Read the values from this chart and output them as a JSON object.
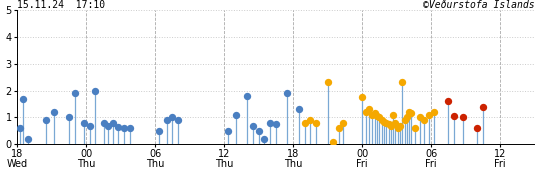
{
  "title_left": "15.11.24  17:10",
  "title_right": "©Veðurstofa Íslands",
  "xlim_hours": [
    0,
    45
  ],
  "ylim": [
    0,
    5
  ],
  "yticks": [
    0,
    1,
    2,
    3,
    4,
    5
  ],
  "xticks_hours": [
    0,
    6,
    12,
    18,
    24,
    30,
    36,
    42
  ],
  "xtick_labels": [
    "18\nWed",
    "00\nThu",
    "06\nThu",
    "12\nThu",
    "18\nThu",
    "00\nFri",
    "06\nFri",
    "12\nFri"
  ],
  "background": "#ffffff",
  "line_color": "#7aa8d4",
  "earthquakes": [
    {
      "t": 0.2,
      "m": 0.6,
      "color": "blue"
    },
    {
      "t": 0.5,
      "m": 1.7,
      "color": "blue"
    },
    {
      "t": 0.9,
      "m": 0.2,
      "color": "blue"
    },
    {
      "t": 2.5,
      "m": 0.9,
      "color": "blue"
    },
    {
      "t": 3.2,
      "m": 1.2,
      "color": "blue"
    },
    {
      "t": 4.5,
      "m": 1.0,
      "color": "blue"
    },
    {
      "t": 5.0,
      "m": 1.9,
      "color": "blue"
    },
    {
      "t": 5.8,
      "m": 0.8,
      "color": "blue"
    },
    {
      "t": 6.3,
      "m": 0.7,
      "color": "blue"
    },
    {
      "t": 6.8,
      "m": 2.0,
      "color": "blue"
    },
    {
      "t": 7.5,
      "m": 0.8,
      "color": "blue"
    },
    {
      "t": 7.9,
      "m": 0.7,
      "color": "blue"
    },
    {
      "t": 8.3,
      "m": 0.8,
      "color": "blue"
    },
    {
      "t": 8.8,
      "m": 0.65,
      "color": "blue"
    },
    {
      "t": 9.3,
      "m": 0.6,
      "color": "blue"
    },
    {
      "t": 9.8,
      "m": 0.6,
      "color": "blue"
    },
    {
      "t": 12.3,
      "m": 0.5,
      "color": "blue"
    },
    {
      "t": 13.0,
      "m": 0.9,
      "color": "blue"
    },
    {
      "t": 13.5,
      "m": 1.0,
      "color": "blue"
    },
    {
      "t": 14.0,
      "m": 0.9,
      "color": "blue"
    },
    {
      "t": 18.3,
      "m": 0.5,
      "color": "blue"
    },
    {
      "t": 19.0,
      "m": 1.1,
      "color": "blue"
    },
    {
      "t": 20.0,
      "m": 1.8,
      "color": "blue"
    },
    {
      "t": 20.5,
      "m": 0.7,
      "color": "blue"
    },
    {
      "t": 21.0,
      "m": 0.5,
      "color": "blue"
    },
    {
      "t": 21.5,
      "m": 0.2,
      "color": "blue"
    },
    {
      "t": 22.0,
      "m": 0.8,
      "color": "blue"
    },
    {
      "t": 22.5,
      "m": 0.75,
      "color": "blue"
    },
    {
      "t": 23.5,
      "m": 1.9,
      "color": "blue"
    },
    {
      "t": 24.5,
      "m": 1.3,
      "color": "blue"
    },
    {
      "t": 25.0,
      "m": 0.8,
      "color": "yellow"
    },
    {
      "t": 25.5,
      "m": 0.9,
      "color": "yellow"
    },
    {
      "t": 26.0,
      "m": 0.8,
      "color": "yellow"
    },
    {
      "t": 27.0,
      "m": 2.3,
      "color": "yellow"
    },
    {
      "t": 27.5,
      "m": 0.1,
      "color": "yellow"
    },
    {
      "t": 28.0,
      "m": 0.6,
      "color": "yellow"
    },
    {
      "t": 28.3,
      "m": 0.8,
      "color": "yellow"
    },
    {
      "t": 30.0,
      "m": 1.75,
      "color": "yellow"
    },
    {
      "t": 30.3,
      "m": 1.2,
      "color": "yellow"
    },
    {
      "t": 30.6,
      "m": 1.3,
      "color": "yellow"
    },
    {
      "t": 30.9,
      "m": 1.1,
      "color": "yellow"
    },
    {
      "t": 31.1,
      "m": 1.15,
      "color": "yellow"
    },
    {
      "t": 31.3,
      "m": 1.05,
      "color": "yellow"
    },
    {
      "t": 31.5,
      "m": 1.0,
      "color": "yellow"
    },
    {
      "t": 31.7,
      "m": 0.9,
      "color": "yellow"
    },
    {
      "t": 31.9,
      "m": 0.85,
      "color": "yellow"
    },
    {
      "t": 32.1,
      "m": 0.8,
      "color": "yellow"
    },
    {
      "t": 32.3,
      "m": 0.75,
      "color": "yellow"
    },
    {
      "t": 32.5,
      "m": 0.7,
      "color": "yellow"
    },
    {
      "t": 32.7,
      "m": 1.1,
      "color": "yellow"
    },
    {
      "t": 32.9,
      "m": 0.8,
      "color": "yellow"
    },
    {
      "t": 33.1,
      "m": 0.6,
      "color": "yellow"
    },
    {
      "t": 33.3,
      "m": 0.7,
      "color": "yellow"
    },
    {
      "t": 33.5,
      "m": 2.3,
      "color": "yellow"
    },
    {
      "t": 33.7,
      "m": 0.9,
      "color": "yellow"
    },
    {
      "t": 33.9,
      "m": 1.0,
      "color": "yellow"
    },
    {
      "t": 34.1,
      "m": 1.2,
      "color": "yellow"
    },
    {
      "t": 34.3,
      "m": 1.15,
      "color": "yellow"
    },
    {
      "t": 34.6,
      "m": 0.6,
      "color": "yellow"
    },
    {
      "t": 35.0,
      "m": 1.0,
      "color": "yellow"
    },
    {
      "t": 35.4,
      "m": 0.9,
      "color": "yellow"
    },
    {
      "t": 35.8,
      "m": 1.1,
      "color": "yellow"
    },
    {
      "t": 36.3,
      "m": 1.2,
      "color": "yellow"
    },
    {
      "t": 37.5,
      "m": 1.6,
      "color": "red"
    },
    {
      "t": 38.0,
      "m": 1.05,
      "color": "red"
    },
    {
      "t": 38.8,
      "m": 1.0,
      "color": "red"
    },
    {
      "t": 40.0,
      "m": 0.6,
      "color": "red"
    },
    {
      "t": 40.5,
      "m": 1.4,
      "color": "red"
    }
  ],
  "dot_size": 28,
  "dot_color_blue": "#4a7fc1",
  "dot_color_yellow": "#f5a800",
  "dot_color_red": "#cc2200",
  "line_lw": 0.9,
  "grid_h_color": "#cccccc",
  "grid_v_color": "#aaaaaa",
  "grid_h_style": "dotted",
  "grid_v_style": "--"
}
